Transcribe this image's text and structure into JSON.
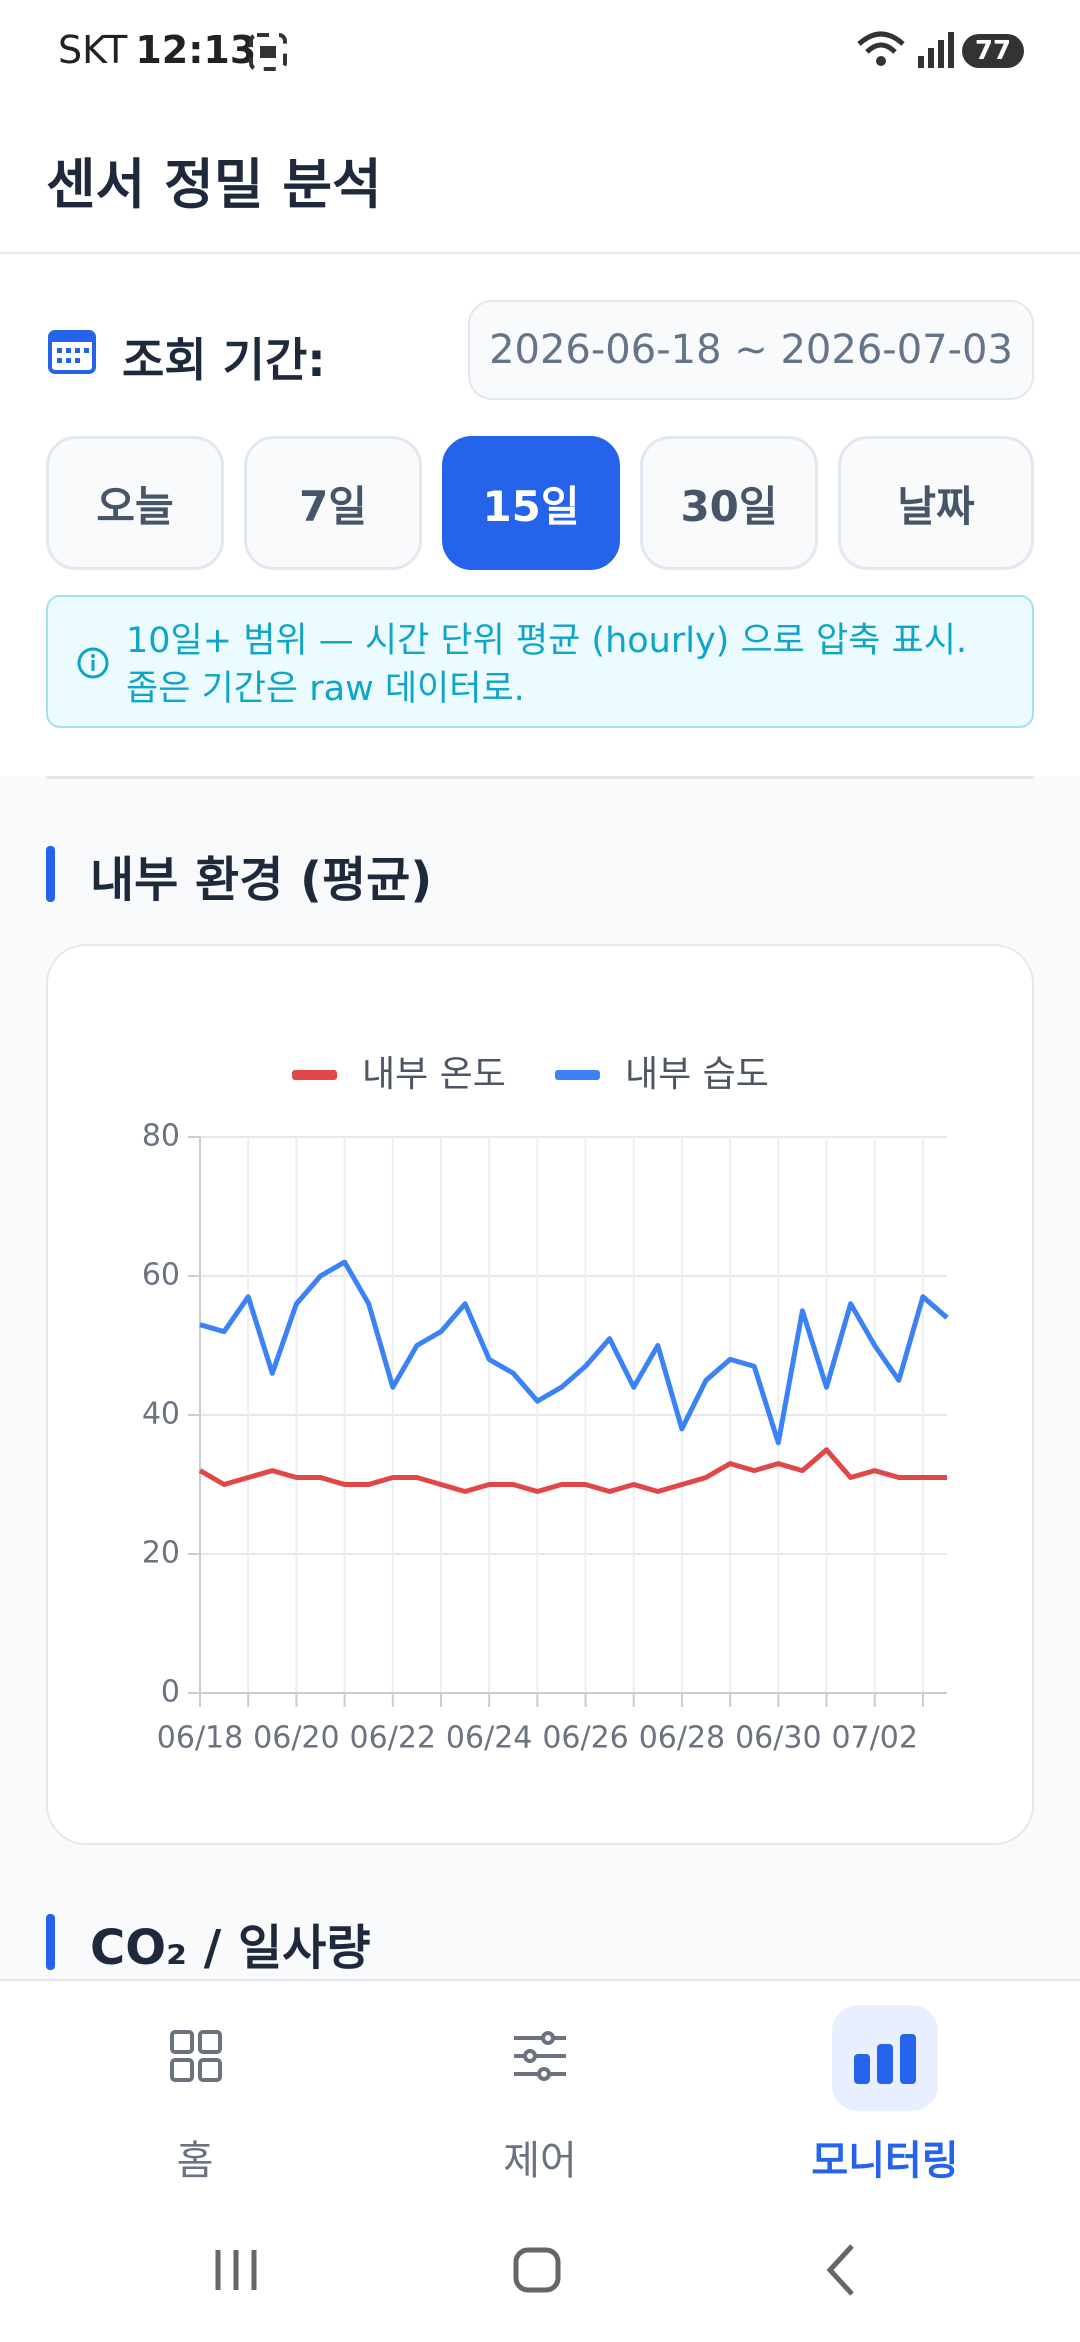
{
  "status_bar": {
    "carrier": "SKT",
    "time": "12:13",
    "battery": "77"
  },
  "header": {
    "title": "센서 정밀 분석"
  },
  "period": {
    "label": "조회 기간:",
    "range": "2026-06-18 ~ 2026-07-03",
    "buttons": [
      "오늘",
      "7일",
      "15일",
      "30일",
      "날짜"
    ],
    "selected": "15일"
  },
  "info": "10일+ 범위 — 시간 단위 평균 (hourly) 으로 압축 표시. 좁은 기간은 raw 데이터로.",
  "sections": [
    {
      "title": "내부 환경 (평균)"
    },
    {
      "title": "CO₂ / 일사량"
    }
  ],
  "chart_data": {
    "type": "line",
    "categories": [
      "06/18",
      null,
      null,
      null,
      "06/20",
      null,
      null,
      null,
      "06/22",
      null,
      null,
      null,
      "06/24",
      null,
      null,
      null,
      "06/26",
      null,
      null,
      null,
      "06/28",
      null,
      null,
      null,
      "06/30",
      null,
      null,
      null,
      "07/02",
      null,
      null,
      null
    ],
    "series": [
      {
        "name": "내부 온도",
        "color": "#e04848",
        "values": [
          32,
          30,
          31,
          32,
          31,
          31,
          30,
          30,
          31,
          31,
          30,
          29,
          30,
          30,
          29,
          30,
          30,
          29,
          30,
          29,
          30,
          31,
          33,
          32,
          33,
          32,
          35,
          31,
          32,
          31,
          31,
          31
        ]
      },
      {
        "name": "내부 습도",
        "color": "#3b82f6",
        "values": [
          53,
          52,
          57,
          46,
          56,
          60,
          62,
          56,
          44,
          50,
          52,
          56,
          48,
          46,
          42,
          44,
          47,
          51,
          44,
          50,
          38,
          45,
          48,
          47,
          36,
          55,
          44,
          56,
          50,
          45,
          57,
          54
        ]
      }
    ],
    "ylim": [
      0,
      80
    ],
    "yticks": [
      0,
      20,
      40,
      60,
      80
    ],
    "grid": true,
    "legend": "top"
  },
  "nav": {
    "items": [
      "홈",
      "제어",
      "모니터링"
    ],
    "active": "모니터링"
  }
}
